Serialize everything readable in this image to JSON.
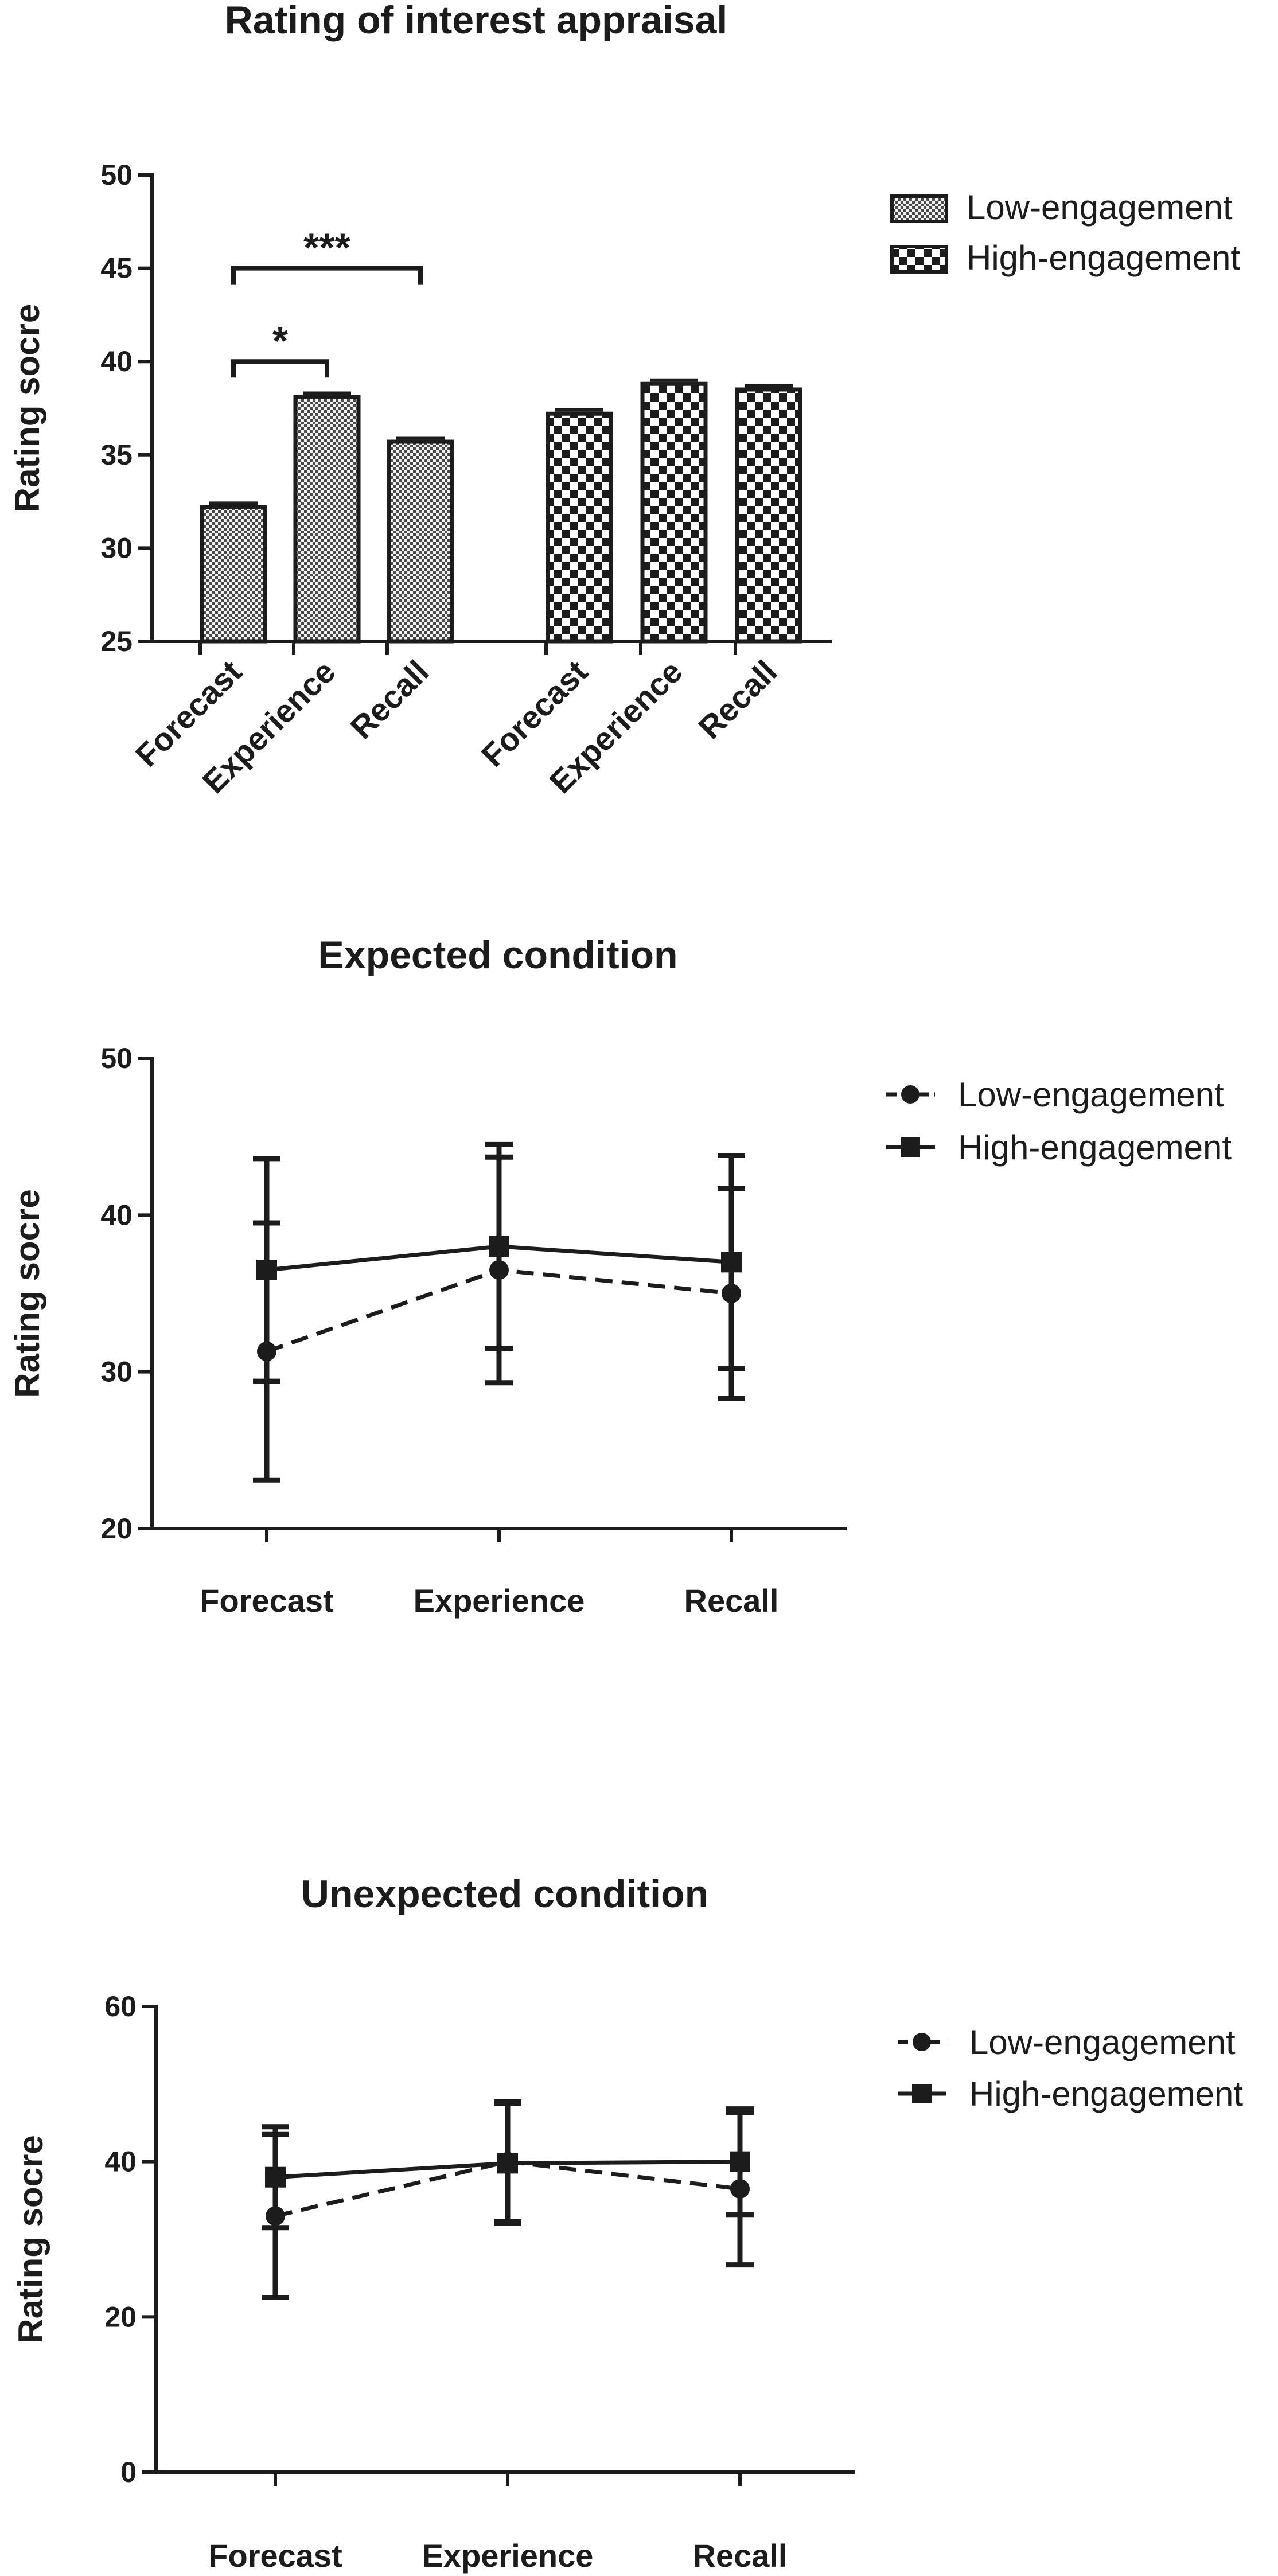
{
  "chart_data": [
    {
      "type": "bar",
      "title": "Rating of interest appraisal",
      "xlabel": "",
      "ylabel": "Rating socre",
      "ylim": [
        25,
        50
      ],
      "yticks": [
        25,
        30,
        35,
        40,
        45,
        50
      ],
      "categories": [
        "Forecast",
        "Experience",
        "Recall"
      ],
      "series": [
        {
          "name": "Low-engagement",
          "pattern": "fine-check",
          "values": [
            32.2,
            38.1,
            35.7
          ],
          "errors": [
            0.2,
            0.2,
            0.2
          ]
        },
        {
          "name": "High-engagement",
          "pattern": "coarse-check",
          "values": [
            37.2,
            38.8,
            38.5
          ],
          "errors": [
            0.2,
            0.2,
            0.2
          ]
        }
      ],
      "annotations": [
        {
          "label": "*",
          "series": 0,
          "from": 0,
          "to": 1,
          "y": 40.0
        },
        {
          "label": "***",
          "series": 0,
          "from": 0,
          "to": 2,
          "y": 45.0
        }
      ],
      "legend": "top-right"
    },
    {
      "type": "line",
      "title": "Expected condition",
      "xlabel": "",
      "ylabel": "Rating socre",
      "ylim": [
        20,
        50
      ],
      "yticks": [
        20,
        30,
        40,
        50
      ],
      "categories": [
        "Forecast",
        "Experience",
        "Recall"
      ],
      "series": [
        {
          "name": "Low-engagement",
          "marker": "circle",
          "dash": true,
          "values": [
            31.3,
            36.5,
            35.0
          ],
          "errors": [
            8.2,
            7.2,
            6.7
          ]
        },
        {
          "name": "High-engagement",
          "marker": "square",
          "dash": false,
          "values": [
            36.5,
            38.0,
            37.0
          ],
          "errors": [
            7.1,
            6.5,
            6.8
          ]
        }
      ],
      "legend": "top-right"
    },
    {
      "type": "line",
      "title": "Unexpected condition",
      "xlabel": "",
      "ylabel": "Rating socre",
      "ylim": [
        0,
        60
      ],
      "yticks": [
        0,
        20,
        40,
        60
      ],
      "categories": [
        "Forecast",
        "Experience",
        "Recall"
      ],
      "series": [
        {
          "name": "Low-engagement",
          "marker": "circle",
          "dash": true,
          "values": [
            33.0,
            40.0,
            36.5
          ],
          "errors": [
            10.5,
            7.7,
            9.8
          ]
        },
        {
          "name": "High-engagement",
          "marker": "square",
          "dash": false,
          "values": [
            38.0,
            39.8,
            40.0
          ],
          "errors": [
            6.5,
            7.7,
            6.8
          ]
        }
      ],
      "legend": "top-right"
    }
  ]
}
